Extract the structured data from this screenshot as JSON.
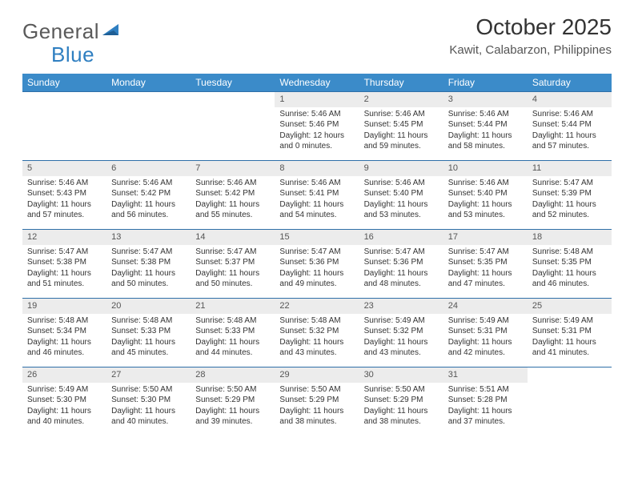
{
  "logo": {
    "text1": "General",
    "text2": "Blue"
  },
  "title": "October 2025",
  "location": "Kawit, Calabarzon, Philippines",
  "colors": {
    "header_bg": "#3b8bc9",
    "header_text": "#ffffff",
    "row_border": "#2f6fa8",
    "daynum_bg": "#ececec",
    "logo_gray": "#5a5a5a",
    "logo_blue": "#2f7fc1"
  },
  "day_headers": [
    "Sunday",
    "Monday",
    "Tuesday",
    "Wednesday",
    "Thursday",
    "Friday",
    "Saturday"
  ],
  "weeks": [
    [
      {
        "n": "",
        "sr": "",
        "ss": "",
        "dl": ""
      },
      {
        "n": "",
        "sr": "",
        "ss": "",
        "dl": ""
      },
      {
        "n": "",
        "sr": "",
        "ss": "",
        "dl": ""
      },
      {
        "n": "1",
        "sr": "Sunrise: 5:46 AM",
        "ss": "Sunset: 5:46 PM",
        "dl": "Daylight: 12 hours and 0 minutes."
      },
      {
        "n": "2",
        "sr": "Sunrise: 5:46 AM",
        "ss": "Sunset: 5:45 PM",
        "dl": "Daylight: 11 hours and 59 minutes."
      },
      {
        "n": "3",
        "sr": "Sunrise: 5:46 AM",
        "ss": "Sunset: 5:44 PM",
        "dl": "Daylight: 11 hours and 58 minutes."
      },
      {
        "n": "4",
        "sr": "Sunrise: 5:46 AM",
        "ss": "Sunset: 5:44 PM",
        "dl": "Daylight: 11 hours and 57 minutes."
      }
    ],
    [
      {
        "n": "5",
        "sr": "Sunrise: 5:46 AM",
        "ss": "Sunset: 5:43 PM",
        "dl": "Daylight: 11 hours and 57 minutes."
      },
      {
        "n": "6",
        "sr": "Sunrise: 5:46 AM",
        "ss": "Sunset: 5:42 PM",
        "dl": "Daylight: 11 hours and 56 minutes."
      },
      {
        "n": "7",
        "sr": "Sunrise: 5:46 AM",
        "ss": "Sunset: 5:42 PM",
        "dl": "Daylight: 11 hours and 55 minutes."
      },
      {
        "n": "8",
        "sr": "Sunrise: 5:46 AM",
        "ss": "Sunset: 5:41 PM",
        "dl": "Daylight: 11 hours and 54 minutes."
      },
      {
        "n": "9",
        "sr": "Sunrise: 5:46 AM",
        "ss": "Sunset: 5:40 PM",
        "dl": "Daylight: 11 hours and 53 minutes."
      },
      {
        "n": "10",
        "sr": "Sunrise: 5:46 AM",
        "ss": "Sunset: 5:40 PM",
        "dl": "Daylight: 11 hours and 53 minutes."
      },
      {
        "n": "11",
        "sr": "Sunrise: 5:47 AM",
        "ss": "Sunset: 5:39 PM",
        "dl": "Daylight: 11 hours and 52 minutes."
      }
    ],
    [
      {
        "n": "12",
        "sr": "Sunrise: 5:47 AM",
        "ss": "Sunset: 5:38 PM",
        "dl": "Daylight: 11 hours and 51 minutes."
      },
      {
        "n": "13",
        "sr": "Sunrise: 5:47 AM",
        "ss": "Sunset: 5:38 PM",
        "dl": "Daylight: 11 hours and 50 minutes."
      },
      {
        "n": "14",
        "sr": "Sunrise: 5:47 AM",
        "ss": "Sunset: 5:37 PM",
        "dl": "Daylight: 11 hours and 50 minutes."
      },
      {
        "n": "15",
        "sr": "Sunrise: 5:47 AM",
        "ss": "Sunset: 5:36 PM",
        "dl": "Daylight: 11 hours and 49 minutes."
      },
      {
        "n": "16",
        "sr": "Sunrise: 5:47 AM",
        "ss": "Sunset: 5:36 PM",
        "dl": "Daylight: 11 hours and 48 minutes."
      },
      {
        "n": "17",
        "sr": "Sunrise: 5:47 AM",
        "ss": "Sunset: 5:35 PM",
        "dl": "Daylight: 11 hours and 47 minutes."
      },
      {
        "n": "18",
        "sr": "Sunrise: 5:48 AM",
        "ss": "Sunset: 5:35 PM",
        "dl": "Daylight: 11 hours and 46 minutes."
      }
    ],
    [
      {
        "n": "19",
        "sr": "Sunrise: 5:48 AM",
        "ss": "Sunset: 5:34 PM",
        "dl": "Daylight: 11 hours and 46 minutes."
      },
      {
        "n": "20",
        "sr": "Sunrise: 5:48 AM",
        "ss": "Sunset: 5:33 PM",
        "dl": "Daylight: 11 hours and 45 minutes."
      },
      {
        "n": "21",
        "sr": "Sunrise: 5:48 AM",
        "ss": "Sunset: 5:33 PM",
        "dl": "Daylight: 11 hours and 44 minutes."
      },
      {
        "n": "22",
        "sr": "Sunrise: 5:48 AM",
        "ss": "Sunset: 5:32 PM",
        "dl": "Daylight: 11 hours and 43 minutes."
      },
      {
        "n": "23",
        "sr": "Sunrise: 5:49 AM",
        "ss": "Sunset: 5:32 PM",
        "dl": "Daylight: 11 hours and 43 minutes."
      },
      {
        "n": "24",
        "sr": "Sunrise: 5:49 AM",
        "ss": "Sunset: 5:31 PM",
        "dl": "Daylight: 11 hours and 42 minutes."
      },
      {
        "n": "25",
        "sr": "Sunrise: 5:49 AM",
        "ss": "Sunset: 5:31 PM",
        "dl": "Daylight: 11 hours and 41 minutes."
      }
    ],
    [
      {
        "n": "26",
        "sr": "Sunrise: 5:49 AM",
        "ss": "Sunset: 5:30 PM",
        "dl": "Daylight: 11 hours and 40 minutes."
      },
      {
        "n": "27",
        "sr": "Sunrise: 5:50 AM",
        "ss": "Sunset: 5:30 PM",
        "dl": "Daylight: 11 hours and 40 minutes."
      },
      {
        "n": "28",
        "sr": "Sunrise: 5:50 AM",
        "ss": "Sunset: 5:29 PM",
        "dl": "Daylight: 11 hours and 39 minutes."
      },
      {
        "n": "29",
        "sr": "Sunrise: 5:50 AM",
        "ss": "Sunset: 5:29 PM",
        "dl": "Daylight: 11 hours and 38 minutes."
      },
      {
        "n": "30",
        "sr": "Sunrise: 5:50 AM",
        "ss": "Sunset: 5:29 PM",
        "dl": "Daylight: 11 hours and 38 minutes."
      },
      {
        "n": "31",
        "sr": "Sunrise: 5:51 AM",
        "ss": "Sunset: 5:28 PM",
        "dl": "Daylight: 11 hours and 37 minutes."
      },
      {
        "n": "",
        "sr": "",
        "ss": "",
        "dl": ""
      }
    ]
  ]
}
